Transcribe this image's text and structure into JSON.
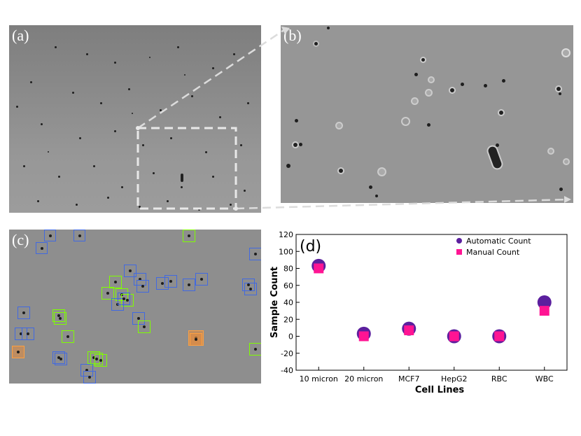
{
  "panels": {
    "a": "(a)",
    "b": "(b)",
    "c": "(c)",
    "d": "(d)"
  },
  "colors": {
    "automatic": "#5b1f9e",
    "manual": "#ff1493",
    "box_blue": "#4169e1",
    "box_green": "#7fff00",
    "box_orange": "#ffa040"
  },
  "chart_data": {
    "type": "scatter",
    "categories": [
      "10 micron",
      "20 micron",
      "MCF7",
      "HepG2",
      "RBC",
      "WBC"
    ],
    "series": [
      {
        "name": "Automatic Count",
        "marker": "circle",
        "values": [
          83,
          3,
          9,
          0,
          0,
          40
        ]
      },
      {
        "name": "Manual Count",
        "marker": "square",
        "values": [
          80,
          0,
          7,
          0,
          0,
          30
        ]
      }
    ],
    "xlabel": "Cell Lines",
    "ylabel": "Sample Count",
    "ylim": [
      -40,
      120
    ],
    "yticks": [
      -40,
      -20,
      0,
      20,
      40,
      60,
      80,
      100,
      120
    ],
    "legend": "top-right",
    "grid": false
  }
}
